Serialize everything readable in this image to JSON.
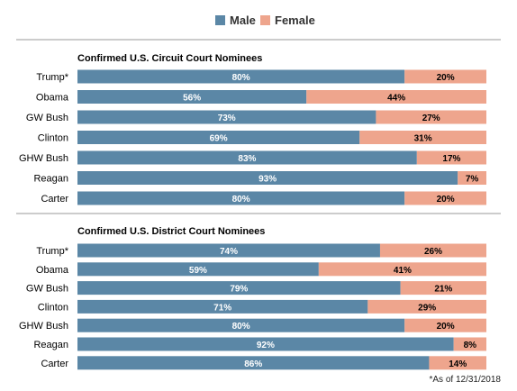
{
  "legend": {
    "male_label": "Male",
    "female_label": "Female"
  },
  "colors": {
    "male": "#5b87a6",
    "female": "#eea58d",
    "male_text": "#ffffff",
    "female_text": "#000000",
    "divider": "#9a9a9a"
  },
  "footnote": "*As of 12/31/2018",
  "chart_data": [
    {
      "type": "bar",
      "orientation": "horizontal",
      "stacked": true,
      "percent": true,
      "title": "Confirmed U.S. Circuit Court Nominees",
      "categories": [
        "Trump*",
        "Obama",
        "GW Bush",
        "Clinton",
        "GHW Bush",
        "Reagan",
        "Carter"
      ],
      "series": [
        {
          "name": "Male",
          "values": [
            80,
            56,
            73,
            69,
            83,
            93,
            80
          ]
        },
        {
          "name": "Female",
          "values": [
            20,
            44,
            27,
            31,
            17,
            7,
            20
          ]
        }
      ],
      "xlim": [
        0,
        100
      ]
    },
    {
      "type": "bar",
      "orientation": "horizontal",
      "stacked": true,
      "percent": true,
      "title": "Confirmed U.S. District Court Nominees",
      "categories": [
        "Trump*",
        "Obama",
        "GW Bush",
        "Clinton",
        "GHW Bush",
        "Reagan",
        "Carter"
      ],
      "series": [
        {
          "name": "Male",
          "values": [
            74,
            59,
            79,
            71,
            80,
            92,
            86
          ]
        },
        {
          "name": "Female",
          "values": [
            26,
            41,
            21,
            29,
            20,
            8,
            14
          ]
        }
      ],
      "xlim": [
        0,
        100
      ]
    }
  ]
}
